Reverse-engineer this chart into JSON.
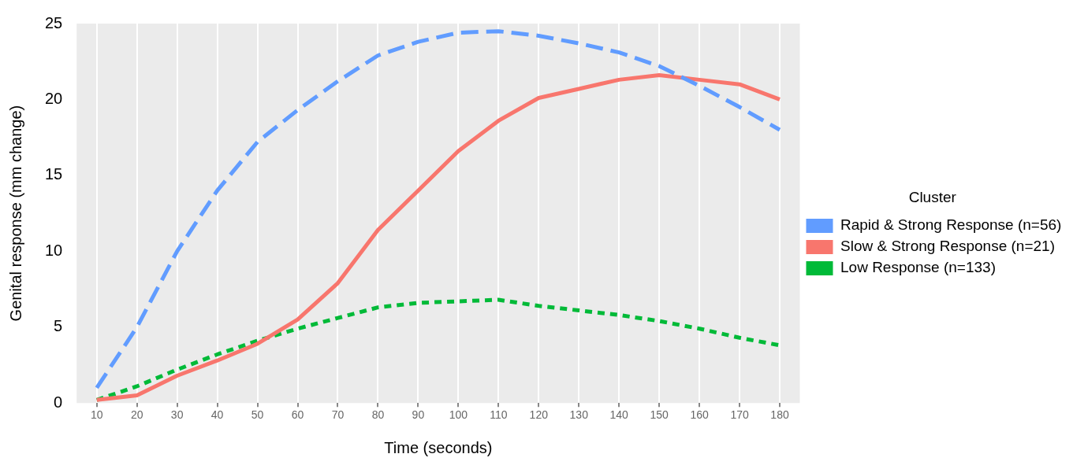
{
  "chart_data": {
    "type": "line",
    "xlabel": "Time (seconds)",
    "ylabel": "Genital response (mm change)",
    "legend_title": "Cluster",
    "legend": "right",
    "categories": [
      "10",
      "20",
      "30",
      "40",
      "50",
      "60",
      "70",
      "80",
      "90",
      "100",
      "110",
      "120",
      "130",
      "140",
      "150",
      "160",
      "170",
      "180"
    ],
    "ylim": [
      0,
      25
    ],
    "yticks": [
      0,
      5,
      10,
      15,
      20,
      25
    ],
    "grid": "x",
    "marker": "none",
    "series": [
      {
        "name": "Rapid & Strong Response (n=56)",
        "color": "#619cff",
        "line_style": "dashed",
        "values": [
          1.0,
          5.0,
          10.0,
          14.0,
          17.2,
          19.3,
          21.2,
          22.9,
          23.8,
          24.4,
          24.5,
          24.2,
          23.7,
          23.1,
          22.2,
          20.9,
          19.5,
          18.0
        ]
      },
      {
        "name": "Slow & Strong Response (n=21)",
        "color": "#f8766d",
        "line_style": "solid",
        "values": [
          0.2,
          0.5,
          1.8,
          2.8,
          3.9,
          5.5,
          7.9,
          11.4,
          14.0,
          16.6,
          18.6,
          20.1,
          20.7,
          21.3,
          21.6,
          21.3,
          21.0,
          20.0
        ]
      },
      {
        "name": "Low Response (n=133)",
        "color": "#00ba38",
        "line_style": "dotted",
        "values": [
          0.2,
          1.1,
          2.2,
          3.2,
          4.1,
          4.9,
          5.6,
          6.3,
          6.6,
          6.7,
          6.8,
          6.4,
          6.1,
          5.8,
          5.4,
          4.9,
          4.3,
          3.8
        ]
      }
    ]
  }
}
